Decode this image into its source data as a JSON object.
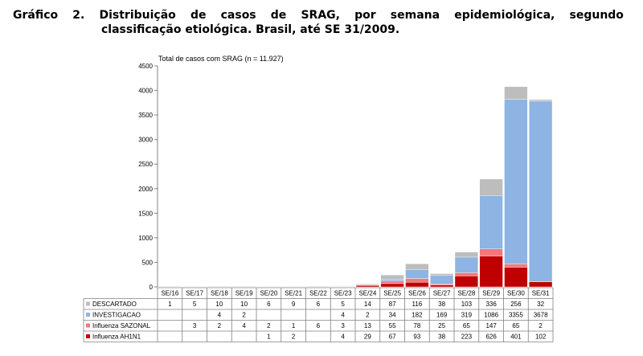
{
  "caption": {
    "line1_words": [
      "Gráfico",
      "2.",
      "Distribuição",
      "de",
      "casos",
      "de",
      "SRAG,",
      "por",
      "semana",
      "epidemiológica,",
      "segundo"
    ],
    "line2": "classificação etiológica. Brasil, até SE 31/2009."
  },
  "chart_data": {
    "type": "bar",
    "stacked": true,
    "title": "Total de casos com SRAG (n = 11.927)",
    "ylim": [
      0,
      4500
    ],
    "yticks": [
      0,
      500,
      1000,
      1500,
      2000,
      2500,
      3000,
      3500,
      4000,
      4500
    ],
    "yticks_labels": [
      "0",
      "500",
      "1000",
      "1500",
      "2000",
      "2500",
      "3000",
      "3500",
      "4000",
      "4500"
    ],
    "grid": false,
    "legend": "data-table-left",
    "categories": [
      "SE/16",
      "SE/17",
      "SE/18",
      "SE/19",
      "SE/20",
      "SE/21",
      "SE/22",
      "SE/23",
      "SE/24",
      "SE/25",
      "SE/26",
      "SE/27",
      "SE/28",
      "SE/29",
      "SE/30",
      "SE/31"
    ],
    "series": [
      {
        "name": "DESCARTADO",
        "color": "#bdbdbd",
        "values": [
          1,
          5,
          10,
          10,
          6,
          9,
          6,
          5,
          14,
          87,
          116,
          38,
          103,
          336,
          256,
          32
        ],
        "labels": [
          "1",
          "5",
          "10",
          "10",
          "6",
          "9",
          "6",
          "5",
          "14",
          "87",
          "116",
          "38",
          "103",
          "336",
          "256",
          "32"
        ]
      },
      {
        "name": "INVESTIGACAO",
        "color": "#8db4e2",
        "values": [
          0,
          0,
          4,
          2,
          0,
          0,
          0,
          4,
          2,
          34,
          182,
          169,
          319,
          1086,
          3355,
          3678
        ],
        "labels": [
          "",
          "",
          "4",
          "2",
          "",
          "",
          "",
          "4",
          "2",
          "34",
          "182",
          "169",
          "319",
          "1086",
          "3355",
          "3678"
        ]
      },
      {
        "name": "Influenza SAZONAL",
        "color": "#f4777b",
        "values": [
          0,
          3,
          2,
          4,
          2,
          1,
          6,
          3,
          13,
          55,
          78,
          25,
          65,
          147,
          65,
          2
        ],
        "labels": [
          "",
          "3",
          "2",
          "4",
          "2",
          "1",
          "6",
          "3",
          "13",
          "55",
          "78",
          "25",
          "65",
          "147",
          "65",
          "2"
        ]
      },
      {
        "name": "Influenza AH1N1",
        "color": "#c00000",
        "values": [
          0,
          0,
          0,
          0,
          1,
          2,
          0,
          4,
          29,
          67,
          93,
          38,
          223,
          626,
          401,
          102
        ],
        "labels": [
          "",
          "",
          "",
          "",
          "1",
          "2",
          "",
          "4",
          "29",
          "67",
          "93",
          "38",
          "223",
          "626",
          "401",
          "102"
        ]
      }
    ]
  }
}
